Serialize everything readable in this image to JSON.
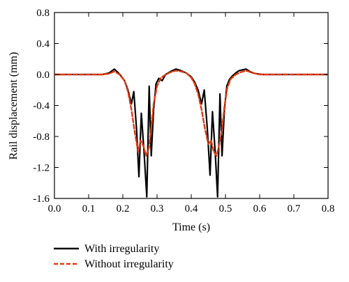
{
  "chart_data": {
    "type": "line",
    "title": "",
    "xlabel": "Time (s)",
    "ylabel": "Rail displacement (mm)",
    "xlim": [
      0.0,
      0.8
    ],
    "ylim": [
      -1.6,
      0.8
    ],
    "x_ticks": [
      "0.0",
      "0.1",
      "0.2",
      "0.3",
      "0.4",
      "0.5",
      "0.6",
      "0.7",
      "0.8"
    ],
    "y_ticks": [
      "0.8",
      "0.4",
      "0.0",
      "-0.4",
      "-0.8",
      "-1.2",
      "-1.6"
    ],
    "grid": false,
    "legend_position": "bottom-left",
    "series": [
      {
        "name": "With irregularity",
        "color": "#000000",
        "dash": "solid",
        "x": [
          0.0,
          0.14,
          0.16,
          0.175,
          0.185,
          0.195,
          0.205,
          0.215,
          0.225,
          0.232,
          0.24,
          0.247,
          0.254,
          0.262,
          0.27,
          0.277,
          0.283,
          0.29,
          0.297,
          0.305,
          0.315,
          0.325,
          0.34,
          0.355,
          0.37,
          0.385,
          0.4,
          0.41,
          0.42,
          0.43,
          0.438,
          0.447,
          0.455,
          0.462,
          0.47,
          0.477,
          0.484,
          0.49,
          0.497,
          0.504,
          0.512,
          0.52,
          0.53,
          0.54,
          0.56,
          0.575,
          0.59,
          0.61,
          0.65,
          0.8
        ],
        "y": [
          0.0,
          0.0,
          0.02,
          0.07,
          0.03,
          -0.02,
          -0.08,
          -0.2,
          -0.38,
          -0.22,
          -0.7,
          -1.32,
          -0.5,
          -1.0,
          -1.58,
          -0.15,
          -1.05,
          -0.45,
          -0.12,
          -0.05,
          -0.08,
          0.0,
          0.04,
          0.07,
          0.05,
          0.02,
          -0.03,
          -0.1,
          -0.2,
          -0.38,
          -0.2,
          -0.7,
          -1.3,
          -0.48,
          -1.0,
          -1.58,
          -0.25,
          -1.05,
          -0.45,
          -0.15,
          -0.06,
          -0.02,
          0.02,
          0.05,
          0.07,
          0.03,
          0.01,
          0.0,
          0.0,
          0.0
        ]
      },
      {
        "name": "Without irregularity",
        "color": "#e03a10",
        "dash": "dashed",
        "x": [
          0.0,
          0.14,
          0.16,
          0.175,
          0.19,
          0.205,
          0.215,
          0.225,
          0.235,
          0.245,
          0.252,
          0.26,
          0.268,
          0.276,
          0.283,
          0.29,
          0.3,
          0.31,
          0.325,
          0.34,
          0.355,
          0.37,
          0.385,
          0.4,
          0.41,
          0.42,
          0.43,
          0.44,
          0.45,
          0.458,
          0.466,
          0.474,
          0.482,
          0.49,
          0.497,
          0.505,
          0.515,
          0.53,
          0.545,
          0.56,
          0.58,
          0.6,
          0.64,
          0.8
        ],
        "y": [
          0.0,
          0.0,
          0.01,
          0.04,
          0.0,
          -0.08,
          -0.22,
          -0.45,
          -0.75,
          -1.0,
          -0.85,
          -0.92,
          -1.05,
          -0.95,
          -0.7,
          -0.38,
          -0.15,
          -0.05,
          0.0,
          0.03,
          0.05,
          0.04,
          0.02,
          -0.04,
          -0.12,
          -0.25,
          -0.45,
          -0.7,
          -0.9,
          -0.85,
          -1.0,
          -1.05,
          -0.9,
          -0.7,
          -0.42,
          -0.18,
          -0.06,
          0.0,
          0.03,
          0.05,
          0.02,
          0.0,
          0.0,
          0.0
        ]
      }
    ]
  }
}
